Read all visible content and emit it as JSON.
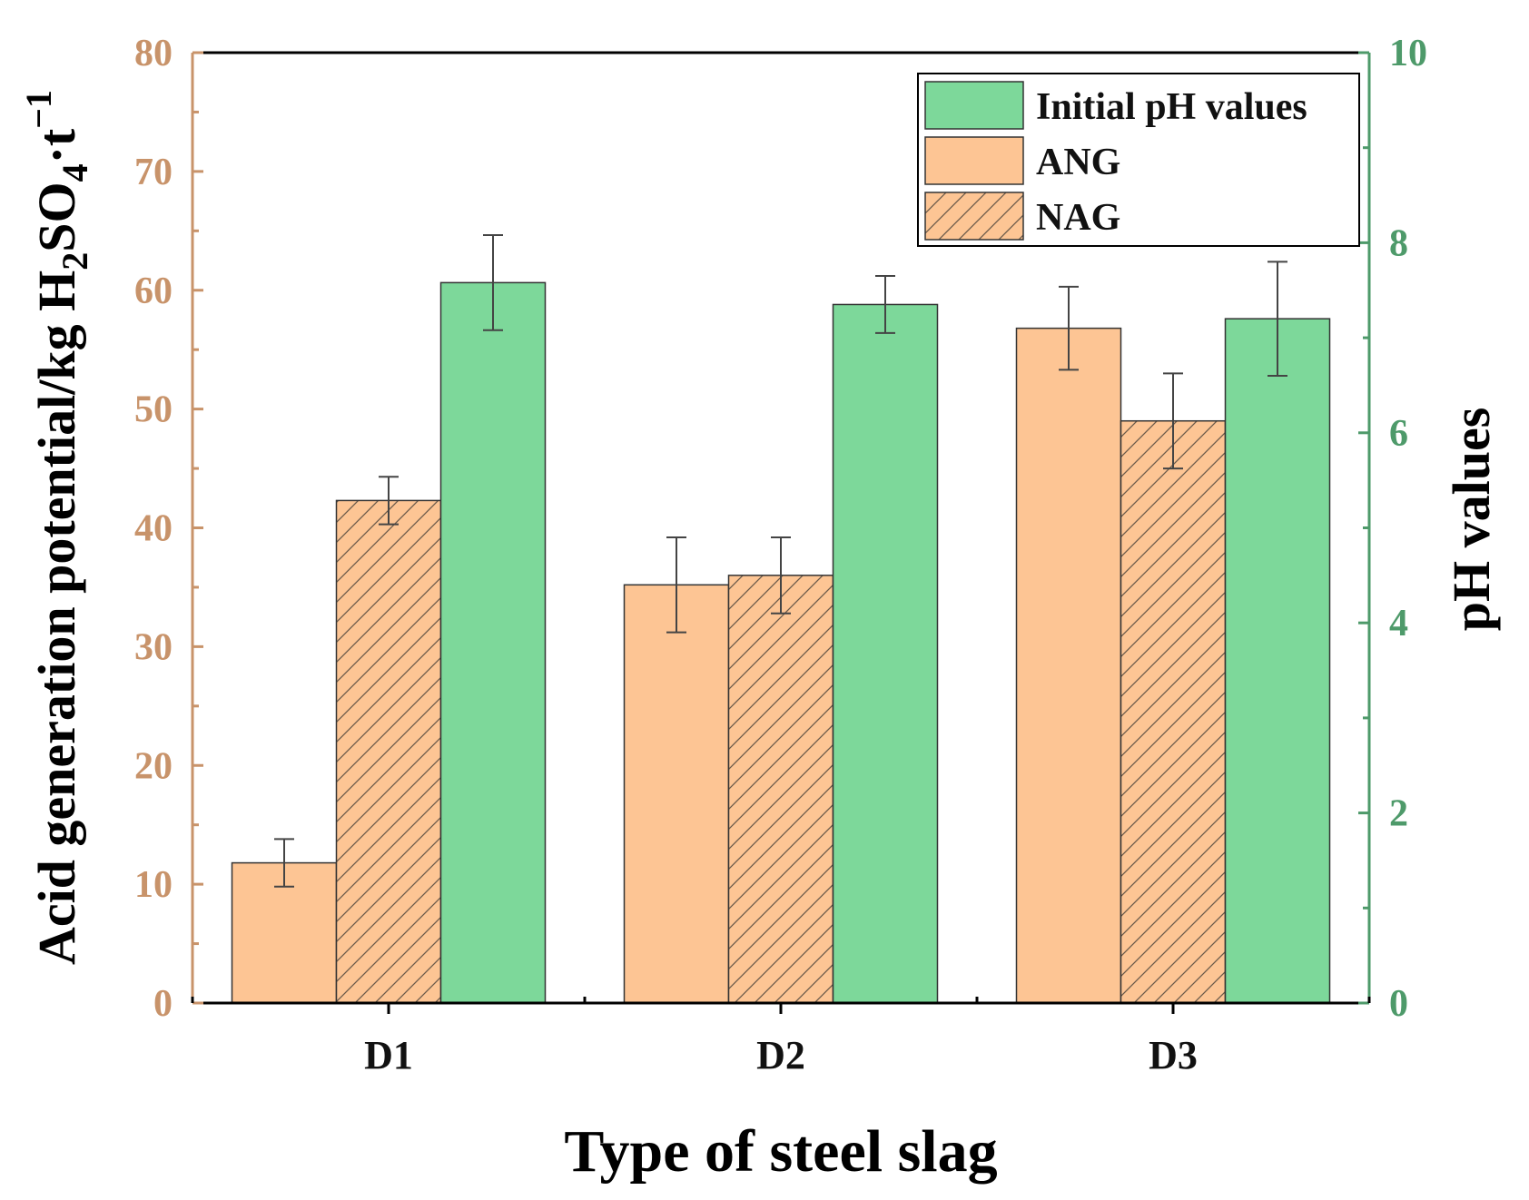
{
  "chart_data": {
    "type": "bar",
    "xlabel": "Type of steel slag",
    "ylabel_left": {
      "main": "Acid generation potential/kg H",
      "sub1": "2",
      "mid": "SO",
      "sub2": "4",
      "tail": "·t",
      "sup": "−1"
    },
    "ylabel_right": "pH values",
    "categories": [
      "D1",
      "D2",
      "D3"
    ],
    "ylim_left": [
      0,
      80
    ],
    "ylim_right": [
      0,
      10
    ],
    "yticks_left": [
      "0",
      "10",
      "20",
      "30",
      "40",
      "50",
      "60",
      "70",
      "80"
    ],
    "yticks_right": [
      "0",
      "2",
      "4",
      "6",
      "8",
      "10"
    ],
    "series": [
      {
        "name": "ANG",
        "axis": "left",
        "color": "#FDC594",
        "hatch": false,
        "values": [
          11.8,
          35.2,
          56.8
        ],
        "errors": [
          2.0,
          4.0,
          3.5
        ]
      },
      {
        "name": "NAG",
        "axis": "left",
        "color": "#FDC594",
        "hatch": true,
        "values": [
          42.3,
          36.0,
          49.0
        ],
        "errors": [
          2.0,
          3.2,
          4.0
        ]
      },
      {
        "name": "Initial pH values",
        "axis": "right",
        "color": "#7DD89A",
        "hatch": false,
        "values": [
          7.58,
          7.35,
          7.2
        ],
        "errors": [
          0.5,
          0.3,
          0.6
        ]
      }
    ],
    "legend": {
      "position": "top-right",
      "entries": [
        "Initial pH values",
        "ANG",
        "NAG"
      ]
    },
    "colors": {
      "left_axis": "#C8936A",
      "right_axis": "#4E9A6A",
      "ang": "#FDC594",
      "ph": "#7DD89A",
      "hatch_line": "#6B5A4A"
    }
  }
}
